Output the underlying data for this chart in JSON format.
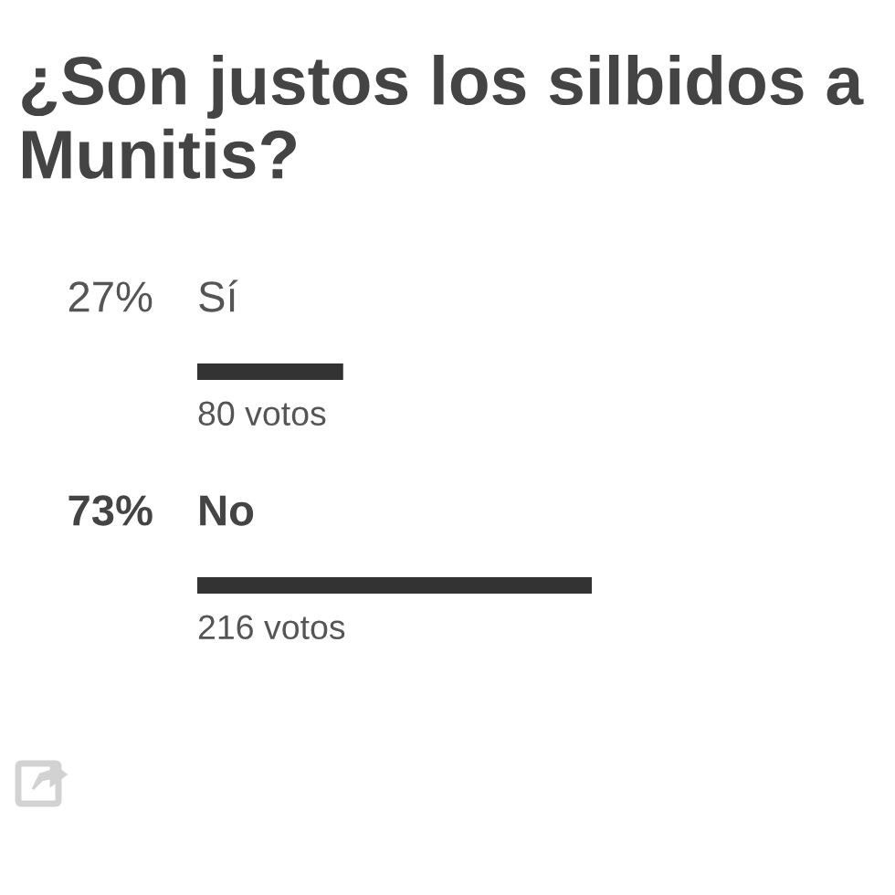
{
  "chart_data": {
    "type": "bar",
    "orientation": "horizontal",
    "title": "¿Son justos los silbidos a Munitis?",
    "categories": [
      "Sí",
      "No"
    ],
    "values": [
      27,
      73
    ],
    "value_labels": [
      "27%",
      "73%"
    ],
    "color": "#333333",
    "annotations": [
      {
        "text": "80 votos",
        "y": "Sí"
      },
      {
        "text": "216 votos",
        "y": "No"
      }
    ]
  }
}
